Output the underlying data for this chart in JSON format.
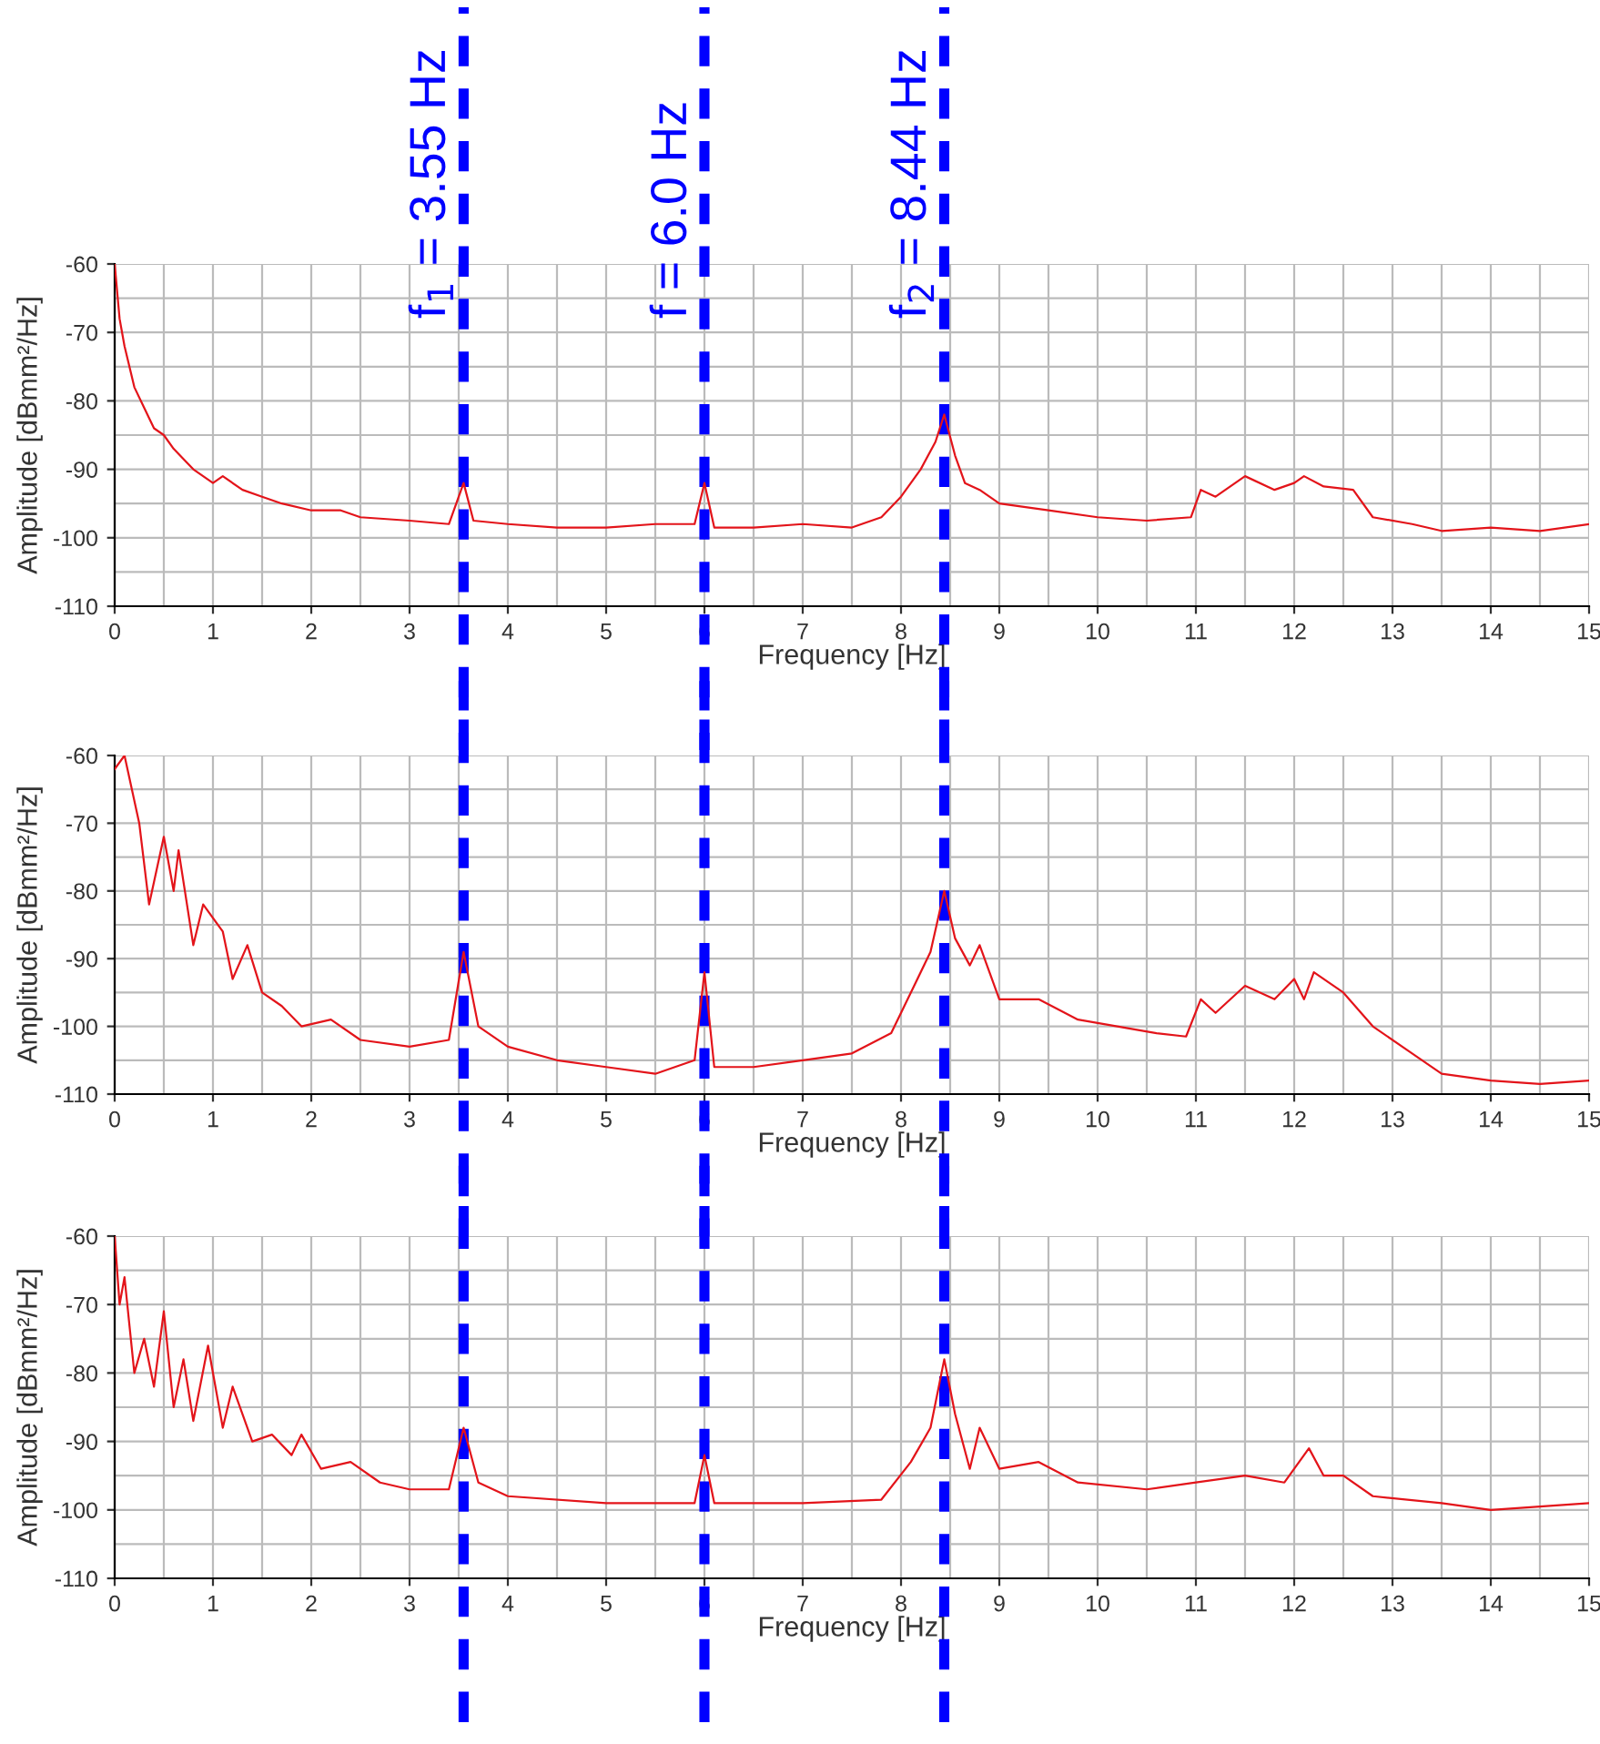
{
  "chart_data": [
    {
      "type": "line",
      "xlabel": "Frequency [Hz]",
      "ylabel": "Amplitude [dBmm²/Hz]",
      "xlim": [
        0,
        15
      ],
      "xticks": [
        0,
        1,
        2,
        3,
        4,
        5,
        6,
        7,
        8,
        9,
        10,
        11,
        12,
        13,
        14,
        15
      ],
      "ylim": [
        -110,
        -60
      ],
      "yticks": [
        -60,
        -70,
        -80,
        -90,
        -100,
        -110
      ],
      "grid": true,
      "legend": false,
      "marker": "none",
      "line_style": "solid",
      "ref_lines": [
        {
          "axis": "x",
          "value": 3.55,
          "label": "f$_{1}$ = 3.55 Hz",
          "color": "#0000ff",
          "line_style": "dashed"
        },
        {
          "axis": "x",
          "value": 6.0,
          "label": "f = 6.0 Hz",
          "color": "#0000ff",
          "line_style": "dashed"
        },
        {
          "axis": "x",
          "value": 8.44,
          "label": "f$_{2}$ = 8.44 Hz",
          "color": "#0000ff",
          "line_style": "dashed"
        }
      ],
      "series": [
        {
          "color": "#e3141a",
          "x": [
            0,
            0.05,
            0.1,
            0.2,
            0.3,
            0.4,
            0.5,
            0.6,
            0.8,
            1.0,
            1.1,
            1.3,
            1.5,
            1.7,
            2.0,
            2.3,
            2.5,
            3.0,
            3.4,
            3.55,
            3.65,
            4,
            4.5,
            5,
            5.5,
            5.9,
            6.0,
            6.1,
            6.5,
            7,
            7.5,
            7.8,
            8.0,
            8.2,
            8.35,
            8.44,
            8.55,
            8.65,
            8.8,
            9,
            9.5,
            10,
            10.5,
            10.95,
            11.05,
            11.2,
            11.5,
            11.8,
            12.0,
            12.1,
            12.3,
            12.6,
            12.8,
            13.2,
            13.5,
            14,
            14.5,
            15
          ],
          "values": [
            -60,
            -68,
            -72,
            -78,
            -81,
            -84,
            -85,
            -87,
            -90,
            -92,
            -91,
            -93,
            -94,
            -95,
            -96,
            -96,
            -97,
            -97.5,
            -98,
            -92,
            -97.5,
            -98,
            -98.5,
            -98.5,
            -98,
            -98,
            -92,
            -98.5,
            -98.5,
            -98,
            -98.5,
            -97,
            -94,
            -90,
            -86,
            -82,
            -88,
            -92,
            -93,
            -95,
            -96,
            -97,
            -97.5,
            -97,
            -93,
            -94,
            -91,
            -93,
            -92,
            -91,
            -92.5,
            -93,
            -97,
            -98,
            -99,
            -98.5,
            -99,
            -98
          ]
        }
      ]
    },
    {
      "type": "line",
      "xlabel": "Frequency [Hz]",
      "ylabel": "Amplitude [dBmm²/Hz]",
      "xlim": [
        0,
        15
      ],
      "xticks": [
        0,
        1,
        2,
        3,
        4,
        5,
        6,
        7,
        8,
        9,
        10,
        11,
        12,
        13,
        14,
        15
      ],
      "ylim": [
        -110,
        -60
      ],
      "yticks": [
        -60,
        -70,
        -80,
        -90,
        -100,
        -110
      ],
      "grid": true,
      "legend": false,
      "marker": "none",
      "line_style": "solid",
      "ref_lines": [
        {
          "axis": "x",
          "value": 3.55,
          "color": "#0000ff",
          "line_style": "dashed"
        },
        {
          "axis": "x",
          "value": 6.0,
          "color": "#0000ff",
          "line_style": "dashed"
        },
        {
          "axis": "x",
          "value": 8.44,
          "color": "#0000ff",
          "line_style": "dashed"
        }
      ],
      "series": [
        {
          "color": "#e3141a",
          "x": [
            0,
            0.1,
            0.25,
            0.35,
            0.5,
            0.6,
            0.65,
            0.8,
            0.9,
            1.1,
            1.2,
            1.35,
            1.5,
            1.7,
            1.9,
            2.2,
            2.5,
            3.0,
            3.4,
            3.55,
            3.7,
            4,
            4.5,
            5,
            5.5,
            5.9,
            6.0,
            6.1,
            6.5,
            7,
            7.5,
            7.9,
            8.1,
            8.3,
            8.44,
            8.55,
            8.7,
            8.8,
            9,
            9.4,
            9.8,
            10.2,
            10.6,
            10.9,
            11.05,
            11.2,
            11.5,
            11.8,
            12.0,
            12.1,
            12.2,
            12.5,
            12.8,
            13.2,
            13.5,
            14,
            14.5,
            15
          ],
          "values": [
            -62,
            -60,
            -70,
            -82,
            -72,
            -80,
            -74,
            -88,
            -82,
            -86,
            -93,
            -88,
            -95,
            -97,
            -100,
            -99,
            -102,
            -103,
            -102,
            -89,
            -100,
            -103,
            -105,
            -106,
            -107,
            -105,
            -92,
            -106,
            -106,
            -105,
            -104,
            -101,
            -95,
            -89,
            -80,
            -87,
            -91,
            -88,
            -96,
            -96,
            -99,
            -100,
            -101,
            -101.5,
            -96,
            -98,
            -94,
            -96,
            -93,
            -96,
            -92,
            -95,
            -100,
            -104,
            -107,
            -108,
            -108.5,
            -108
          ]
        }
      ]
    },
    {
      "type": "line",
      "xlabel": "Frequency [Hz]",
      "ylabel": "Amplitude [dBmm²/Hz]",
      "xlim": [
        0,
        15
      ],
      "xticks": [
        0,
        1,
        2,
        3,
        4,
        5,
        6,
        7,
        8,
        9,
        10,
        11,
        12,
        13,
        14,
        15
      ],
      "ylim": [
        -110,
        -60
      ],
      "yticks": [
        -60,
        -70,
        -80,
        -90,
        -100,
        -110
      ],
      "grid": true,
      "legend": false,
      "marker": "none",
      "line_style": "solid",
      "ref_lines": [
        {
          "axis": "x",
          "value": 3.55,
          "color": "#0000ff",
          "line_style": "dashed"
        },
        {
          "axis": "x",
          "value": 6.0,
          "color": "#0000ff",
          "line_style": "dashed"
        },
        {
          "axis": "x",
          "value": 8.44,
          "color": "#0000ff",
          "line_style": "dashed"
        }
      ],
      "series": [
        {
          "color": "#e3141a",
          "x": [
            0,
            0.05,
            0.1,
            0.2,
            0.3,
            0.4,
            0.5,
            0.6,
            0.7,
            0.8,
            0.95,
            1.1,
            1.2,
            1.4,
            1.6,
            1.8,
            1.9,
            2.1,
            2.4,
            2.7,
            3.0,
            3.4,
            3.55,
            3.7,
            4,
            5,
            5.9,
            6.0,
            6.1,
            7,
            7.8,
            8.1,
            8.3,
            8.44,
            8.55,
            8.7,
            8.8,
            9,
            9.4,
            9.8,
            10.5,
            11,
            11.5,
            11.9,
            12.15,
            12.3,
            12.5,
            12.8,
            13.5,
            14,
            14.5,
            15
          ],
          "values": [
            -60,
            -70,
            -66,
            -80,
            -75,
            -82,
            -71,
            -85,
            -78,
            -87,
            -76,
            -88,
            -82,
            -90,
            -89,
            -92,
            -89,
            -94,
            -93,
            -96,
            -97,
            -97,
            -88,
            -96,
            -98,
            -99,
            -99,
            -92,
            -99,
            -99,
            -98.5,
            -93,
            -88,
            -78,
            -86,
            -94,
            -88,
            -94,
            -93,
            -96,
            -97,
            -96,
            -95,
            -96,
            -91,
            -95,
            -95,
            -98,
            -99,
            -100,
            -99.5,
            -99
          ]
        }
      ]
    }
  ]
}
